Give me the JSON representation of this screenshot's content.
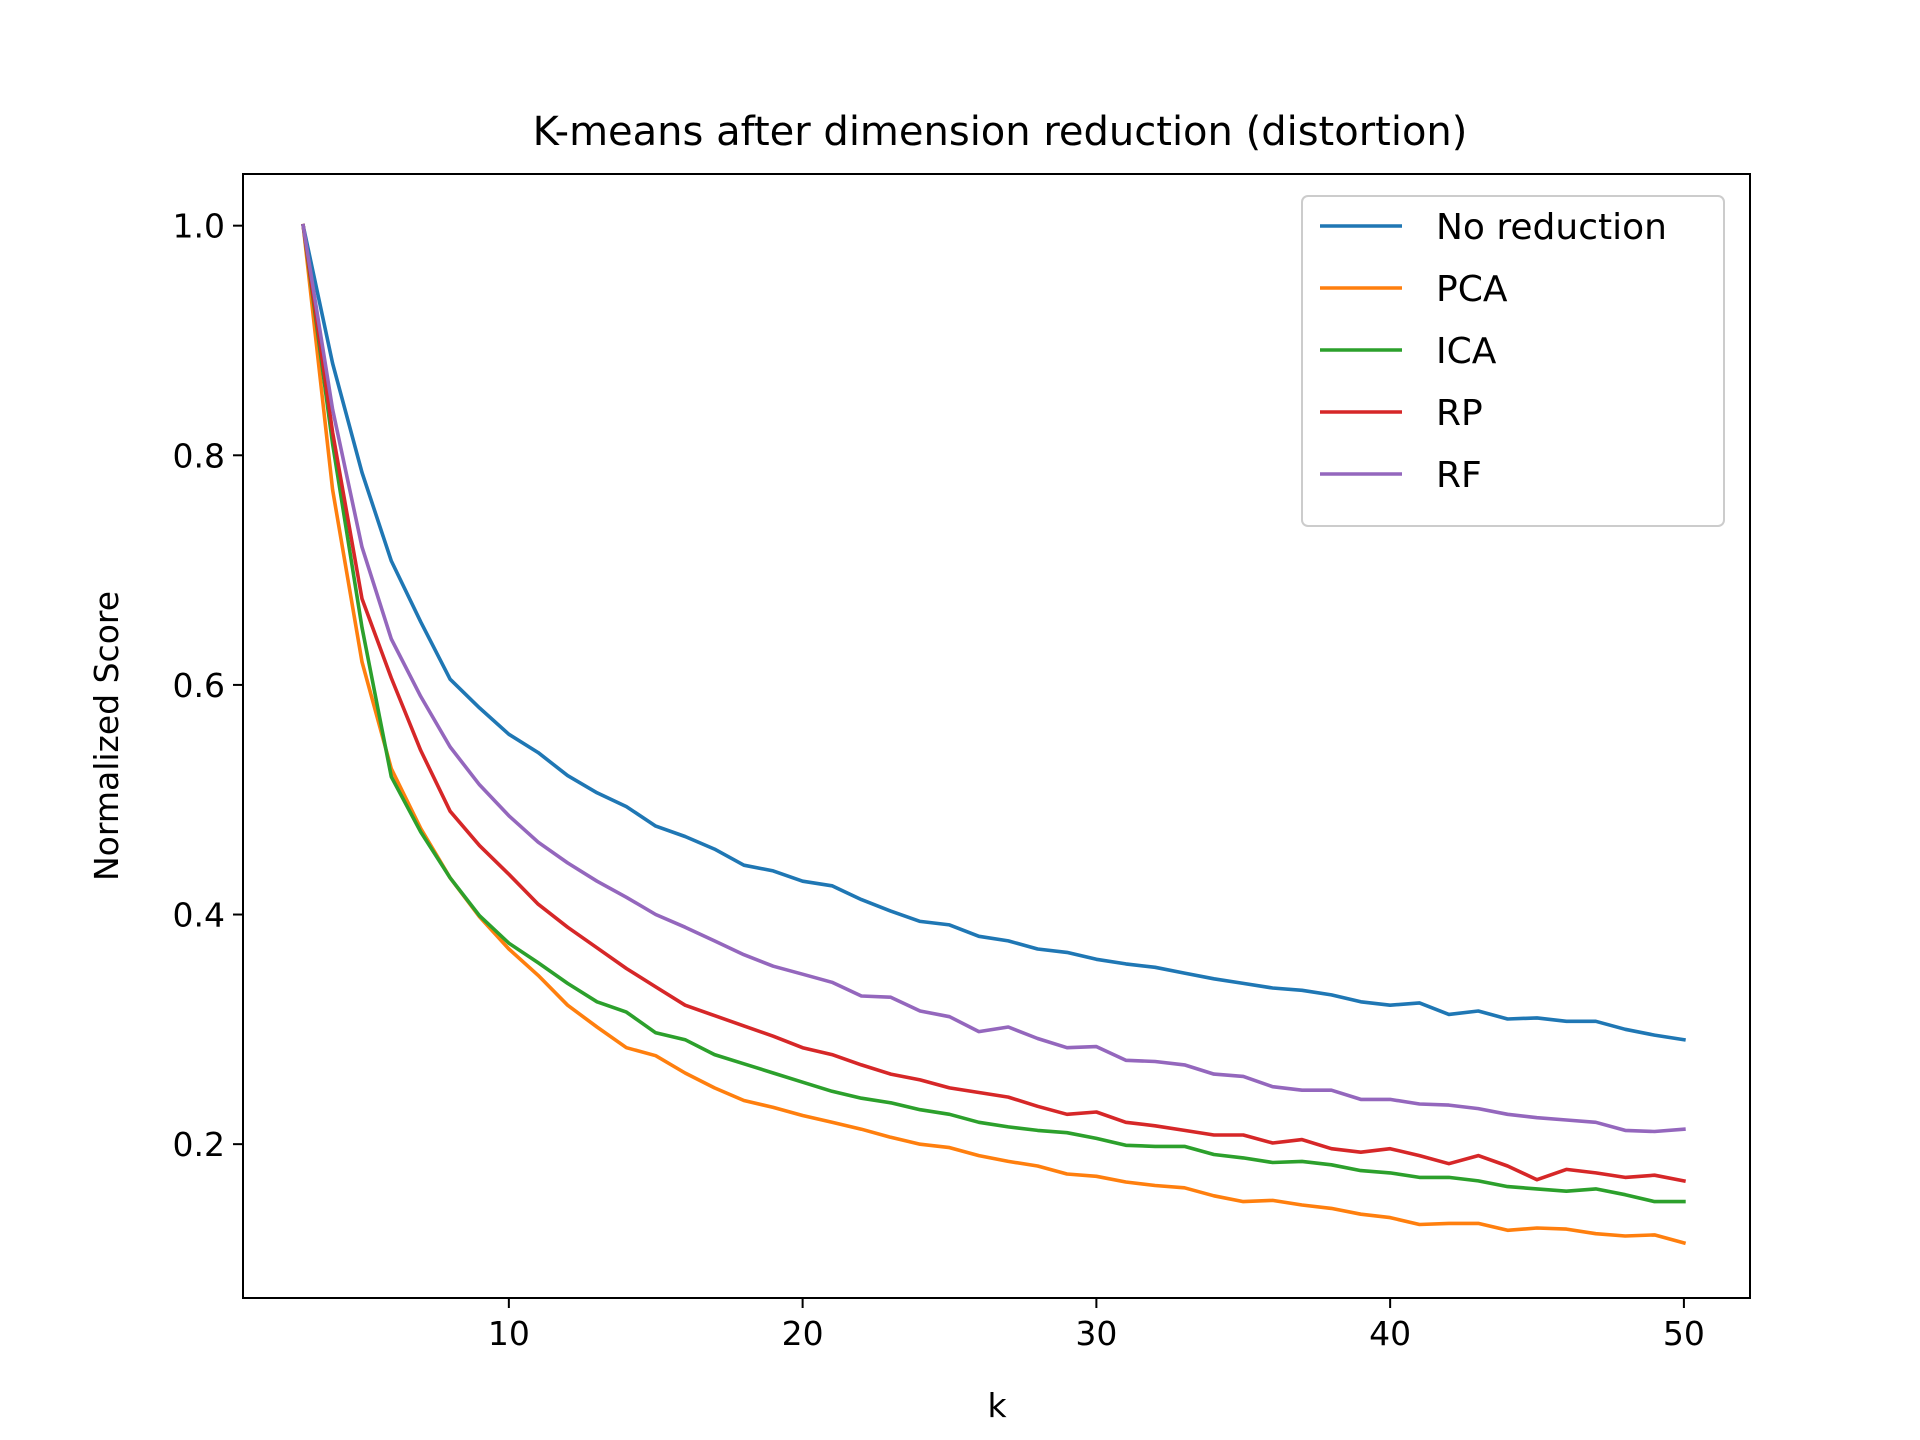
{
  "chart_data": {
    "type": "line",
    "title": "K-means after dimension reduction (distortion)",
    "xlabel": "k",
    "ylabel": "Normalized Score",
    "xlim": [
      0.95,
      52.25
    ],
    "ylim": [
      0.066,
      1.045
    ],
    "xticks": [
      10,
      20,
      30,
      40,
      50
    ],
    "yticks": [
      0.2,
      0.4,
      0.6,
      0.8,
      1.0
    ],
    "xtick_labels": [
      "10",
      "20",
      "30",
      "40",
      "50"
    ],
    "ytick_labels": [
      "0.2",
      "0.4",
      "0.6",
      "0.8",
      "1.0"
    ],
    "grid": false,
    "legend_position": "top-right",
    "x": [
      3,
      4,
      5,
      6,
      7,
      8,
      9,
      10,
      11,
      12,
      13,
      14,
      15,
      16,
      17,
      18,
      19,
      20,
      21,
      22,
      23,
      24,
      25,
      26,
      27,
      28,
      29,
      30,
      31,
      32,
      33,
      34,
      35,
      36,
      37,
      38,
      39,
      40,
      41,
      42,
      43,
      44,
      45,
      46,
      47,
      48,
      49,
      50
    ],
    "series": [
      {
        "name": "No reduction",
        "color": "#1f77b4",
        "values": [
          1.0,
          0.88,
          0.785,
          0.708,
          0.655,
          0.605,
          0.58,
          0.557,
          0.541,
          0.521,
          0.506,
          0.494,
          0.477,
          0.468,
          0.457,
          0.443,
          0.438,
          0.429,
          0.425,
          0.413,
          0.403,
          0.394,
          0.391,
          0.381,
          0.377,
          0.37,
          0.367,
          0.361,
          0.357,
          0.354,
          0.349,
          0.344,
          0.34,
          0.336,
          0.334,
          0.33,
          0.324,
          0.321,
          0.323,
          0.313,
          0.316,
          0.309,
          0.31,
          0.307,
          0.307,
          0.3,
          0.295,
          0.291
        ]
      },
      {
        "name": "PCA",
        "color": "#ff7f0e",
        "values": [
          1.0,
          0.77,
          0.62,
          0.527,
          0.475,
          0.432,
          0.398,
          0.37,
          0.347,
          0.321,
          0.302,
          0.284,
          0.277,
          0.262,
          0.249,
          0.238,
          0.232,
          0.225,
          0.219,
          0.213,
          0.206,
          0.2,
          0.197,
          0.19,
          0.185,
          0.181,
          0.174,
          0.172,
          0.167,
          0.164,
          0.162,
          0.155,
          0.15,
          0.151,
          0.147,
          0.144,
          0.139,
          0.136,
          0.13,
          0.131,
          0.131,
          0.125,
          0.127,
          0.126,
          0.122,
          0.12,
          0.121,
          0.114
        ]
      },
      {
        "name": "ICA",
        "color": "#2ca02c",
        "values": [
          1.0,
          0.81,
          0.65,
          0.52,
          0.472,
          0.432,
          0.399,
          0.375,
          0.358,
          0.34,
          0.324,
          0.315,
          0.297,
          0.291,
          0.278,
          0.27,
          0.262,
          0.254,
          0.246,
          0.24,
          0.236,
          0.23,
          0.226,
          0.219,
          0.215,
          0.212,
          0.21,
          0.205,
          0.199,
          0.198,
          0.198,
          0.191,
          0.188,
          0.184,
          0.185,
          0.182,
          0.177,
          0.175,
          0.171,
          0.171,
          0.168,
          0.163,
          0.161,
          0.159,
          0.161,
          0.156,
          0.15,
          0.15
        ]
      },
      {
        "name": "RP",
        "color": "#d62728",
        "values": [
          1.0,
          0.82,
          0.675,
          0.606,
          0.543,
          0.49,
          0.46,
          0.435,
          0.409,
          0.389,
          0.371,
          0.353,
          0.337,
          0.321,
          0.312,
          0.303,
          0.294,
          0.284,
          0.278,
          0.269,
          0.261,
          0.256,
          0.249,
          0.245,
          0.241,
          0.233,
          0.226,
          0.228,
          0.219,
          0.216,
          0.212,
          0.208,
          0.208,
          0.201,
          0.204,
          0.196,
          0.193,
          0.196,
          0.19,
          0.183,
          0.19,
          0.181,
          0.169,
          0.178,
          0.175,
          0.171,
          0.173,
          0.168
        ]
      },
      {
        "name": "RF",
        "color": "#9467bd",
        "values": [
          1.0,
          0.84,
          0.72,
          0.64,
          0.59,
          0.546,
          0.513,
          0.486,
          0.463,
          0.445,
          0.429,
          0.415,
          0.4,
          0.389,
          0.377,
          0.365,
          0.355,
          0.348,
          0.341,
          0.329,
          0.328,
          0.316,
          0.311,
          0.298,
          0.302,
          0.292,
          0.284,
          0.285,
          0.273,
          0.272,
          0.269,
          0.261,
          0.259,
          0.25,
          0.247,
          0.247,
          0.239,
          0.239,
          0.235,
          0.234,
          0.231,
          0.226,
          0.223,
          0.221,
          0.219,
          0.212,
          0.211,
          0.213
        ]
      }
    ]
  }
}
